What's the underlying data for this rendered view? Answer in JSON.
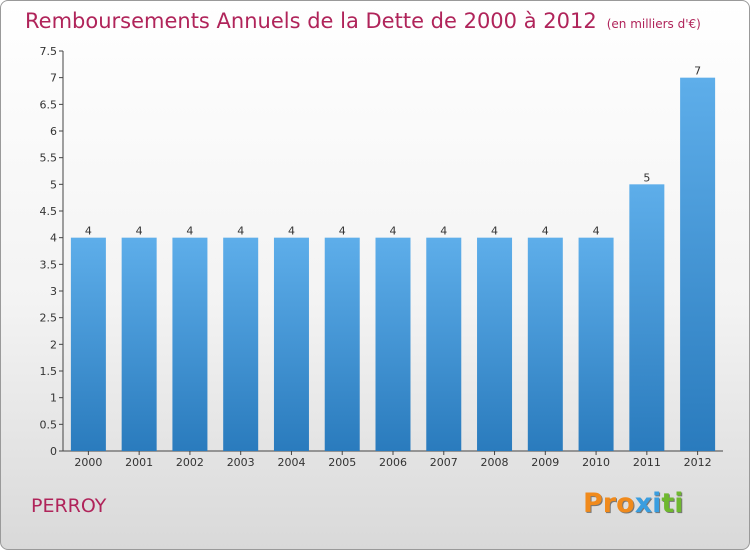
{
  "header": {
    "title": "Remboursements Annuels de la Dette de 2000 à 2012",
    "subtitle": "(en milliers d'€)"
  },
  "footer": {
    "commune": "PERROY",
    "logo_letters": [
      "P",
      "r",
      "o",
      "x",
      "i",
      "t",
      "i"
    ]
  },
  "colors": {
    "title": "#b0245a",
    "bar_top": "#5eaeea",
    "bar_bottom": "#2a7bbd",
    "logo_letters": [
      "#f08a1c",
      "#f08a1c",
      "#f08a1c",
      "#3a9ee0",
      "#3a9ee0",
      "#6fb82f",
      "#6fb82f"
    ]
  },
  "chart_data": {
    "type": "bar",
    "title": "Remboursements Annuels de la Dette de 2000 à 2012",
    "subtitle": "(en milliers d'€)",
    "categories": [
      "2000",
      "2001",
      "2002",
      "2003",
      "2004",
      "2005",
      "2006",
      "2007",
      "2008",
      "2009",
      "2010",
      "2011",
      "2012"
    ],
    "values": [
      4,
      4,
      4,
      4,
      4,
      4,
      4,
      4,
      4,
      4,
      4,
      5,
      7
    ],
    "data_labels": [
      "4",
      "4",
      "4",
      "4",
      "4",
      "4",
      "4",
      "4",
      "4",
      "4",
      "4",
      "5",
      "7"
    ],
    "ylim": [
      0,
      7.5
    ],
    "yticks": [
      "0",
      "0.5",
      "1",
      "1.5",
      "2",
      "2.5",
      "3",
      "3.5",
      "4",
      "4.5",
      "5",
      "5.5",
      "6",
      "6.5",
      "7",
      "7.5"
    ],
    "grid": false
  }
}
